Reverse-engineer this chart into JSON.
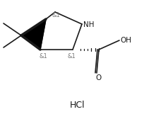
{
  "background_color": "#ffffff",
  "figsize": [
    2.21,
    1.68
  ],
  "dpi": 100,
  "line_color": "#1a1a1a",
  "text_color": "#1a1a1a",
  "hcl_text": "HCl",
  "nh_text": "NH",
  "oh_text": "OH",
  "stereo_label": "&1",
  "font_size_labels": 7.5,
  "font_size_hcl": 9,
  "font_size_stereo": 6
}
